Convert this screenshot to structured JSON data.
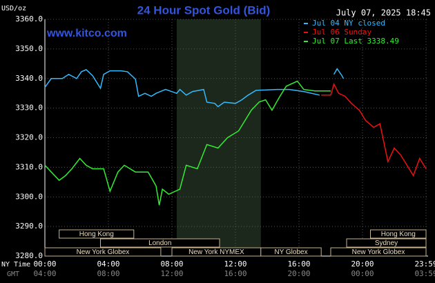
{
  "chart_data": {
    "type": "line",
    "title": "24 Hour Spot Gold (Bid)",
    "timestamp": "July 07, 2025 18:45",
    "website": "www.kitco.com",
    "y_label": "USD/oz",
    "x_label": "NY Time",
    "x2_label": "GMT",
    "legend": "top-right",
    "grid": true,
    "xlim": [
      0,
      24
    ],
    "ylim": [
      3280,
      3360
    ],
    "xticks": [
      {
        "value": 0,
        "label": "00:00"
      },
      {
        "value": 4,
        "label": "04:00"
      },
      {
        "value": 8,
        "label": "08:00"
      },
      {
        "value": 12,
        "label": "12:00"
      },
      {
        "value": 16,
        "label": "16:00"
      },
      {
        "value": 20,
        "label": "20:00"
      },
      {
        "value": 24,
        "label": "23:59"
      }
    ],
    "x2tick_labels": [
      "04:00",
      "08:00",
      "12:00",
      "16:00",
      "20:00",
      "00:00",
      "03:59"
    ],
    "yticks": [
      {
        "value": 3280,
        "label": "3280.0"
      },
      {
        "value": 3290,
        "label": "3290.0"
      },
      {
        "value": 3300,
        "label": "3300.0"
      },
      {
        "value": 3310,
        "label": "3310.0"
      },
      {
        "value": 3320,
        "label": "3320.0"
      },
      {
        "value": 3330,
        "label": "3330.0"
      },
      {
        "value": 3340,
        "label": "3340.0"
      },
      {
        "value": 3350,
        "label": "3350.0"
      },
      {
        "value": 3360,
        "label": "3360.0"
      }
    ],
    "highlight": [
      8.3,
      13.6
    ],
    "sessions": [
      {
        "name": "Hong Kong",
        "row": 0,
        "start": 0.9,
        "end": 5.6
      },
      {
        "name": "Hong Kong",
        "row": 0,
        "start": 20.5,
        "end": 24
      },
      {
        "name": "London",
        "row": 1,
        "start": 3.5,
        "end": 11.0
      },
      {
        "name": "Sydney",
        "row": 1,
        "start": 19.0,
        "end": 24
      },
      {
        "name": "New York Globex",
        "row": 2,
        "start": 0,
        "end": 7.3
      },
      {
        "name": "New York NYMEX",
        "row": 2,
        "start": 8.0,
        "end": 13.6
      },
      {
        "name": "NY Globex",
        "row": 2,
        "start": 13.6,
        "end": 17.4
      },
      {
        "name": "New York Globex",
        "row": 2,
        "start": 18.0,
        "end": 24
      }
    ],
    "series": [
      {
        "name": "Jul 04 NY closed",
        "color": "#33bbff",
        "x": [
          0.0,
          0.4,
          1.1,
          1.5,
          2.0,
          2.3,
          2.6,
          3.0,
          3.5,
          3.7,
          4.1,
          4.8,
          5.2,
          5.7,
          5.9,
          6.3,
          6.7,
          7.0,
          7.6,
          8.3,
          8.5,
          8.9,
          9.3,
          10.0,
          10.2,
          10.7,
          10.9,
          11.3,
          12.0,
          12.4,
          12.8,
          13.3,
          14.6,
          15.4,
          16.3,
          17.3,
          null,
          18.2,
          18.4,
          18.7,
          18.8
        ],
        "values": [
          3337,
          3340,
          3340,
          3341.4,
          3340,
          3342.3,
          3343,
          3341,
          3336.7,
          3341.4,
          3342.6,
          3342.6,
          3342.3,
          3339.8,
          3334,
          3335,
          3334,
          3335,
          3336.3,
          3335,
          3336.3,
          3334.4,
          3335.6,
          3336.3,
          3332,
          3331.6,
          3330.5,
          3332,
          3331.6,
          3332.8,
          3334.4,
          3336,
          3336.3,
          3336.3,
          3335.6,
          3334.4,
          null,
          3341.4,
          3343.3,
          3341,
          3340
        ]
      },
      {
        "name": "Jul 06 Sunday",
        "color": "#ee1111",
        "x": [
          17.4,
          18.0,
          18.2,
          18.5,
          18.9,
          19.3,
          19.8,
          20.2,
          20.7,
          21.1,
          21.6,
          22.0,
          22.4,
          22.8,
          23.2,
          23.6,
          24.0
        ],
        "values": [
          3334.4,
          3334.4,
          3338.1,
          3335,
          3334,
          3331.6,
          3329.3,
          3325.8,
          3323.5,
          3324.7,
          3311.9,
          3316.5,
          3314.2,
          3310.7,
          3307.2,
          3313,
          3309.5
        ]
      },
      {
        "name": "Jul 07 Last 3338.49",
        "color": "#33ee33",
        "x": [
          0.0,
          0.4,
          0.9,
          1.3,
          1.7,
          2.2,
          2.6,
          3.0,
          3.7,
          4.1,
          4.6,
          5.0,
          5.7,
          6.5,
          7.0,
          7.2,
          7.4,
          7.8,
          8.5,
          8.9,
          9.6,
          10.2,
          10.9,
          11.5,
          12.2,
          12.6,
          13.0,
          13.5,
          13.9,
          14.3,
          14.8,
          15.2,
          15.9,
          16.3,
          17.0,
          18.0
        ],
        "values": [
          3310.7,
          3308.4,
          3305.6,
          3307.2,
          3309.5,
          3313,
          3310.7,
          3309.5,
          3309.5,
          3301.9,
          3308.4,
          3310.7,
          3308.4,
          3308.4,
          3303.7,
          3297.2,
          3302.6,
          3300.9,
          3302.6,
          3310.7,
          3309.5,
          3317.7,
          3316.5,
          3320,
          3322.3,
          3325.8,
          3329.3,
          3332.1,
          3332.8,
          3329.3,
          3334,
          3337.4,
          3339.1,
          3336.3,
          3335.8,
          3335.8
        ]
      }
    ]
  }
}
